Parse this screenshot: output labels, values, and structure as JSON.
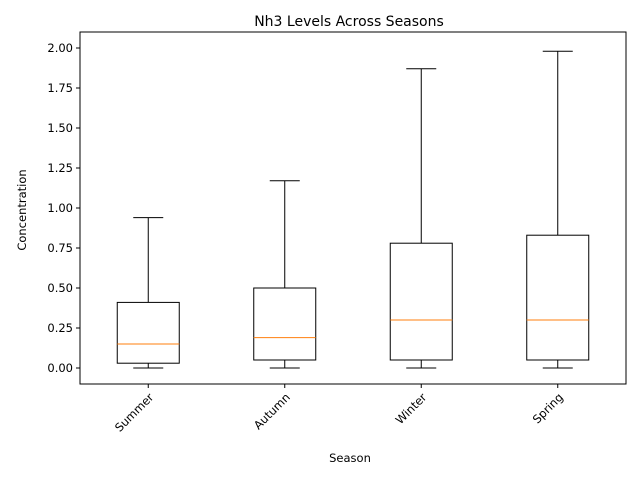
{
  "chart_data": {
    "type": "box",
    "title": "Nh3 Levels Across Seasons",
    "xlabel": "Season",
    "ylabel": "Concentration",
    "ylim": [
      -0.1,
      2.1
    ],
    "yticks": [
      0.0,
      0.25,
      0.5,
      0.75,
      1.0,
      1.25,
      1.5,
      1.75,
      2.0
    ],
    "ytick_labels": [
      "0.00",
      "0.25",
      "0.50",
      "0.75",
      "1.00",
      "1.25",
      "1.50",
      "1.75",
      "2.00"
    ],
    "categories": [
      "Summer",
      "Autumn",
      "Winter",
      "Spring"
    ],
    "boxes": [
      {
        "category": "Summer",
        "whisker_low": 0.0,
        "q1": 0.03,
        "median": 0.15,
        "q3": 0.41,
        "whisker_high": 0.94
      },
      {
        "category": "Autumn",
        "whisker_low": 0.0,
        "q1": 0.05,
        "median": 0.19,
        "q3": 0.5,
        "whisker_high": 1.17
      },
      {
        "category": "Winter",
        "whisker_low": 0.0,
        "q1": 0.05,
        "median": 0.3,
        "q3": 0.78,
        "whisker_high": 1.87
      },
      {
        "category": "Spring",
        "whisker_low": 0.0,
        "q1": 0.05,
        "median": 0.3,
        "q3": 0.83,
        "whisker_high": 1.98
      }
    ],
    "grid": false,
    "colors": {
      "box": "#000000",
      "median": "#ff7f0e"
    }
  }
}
